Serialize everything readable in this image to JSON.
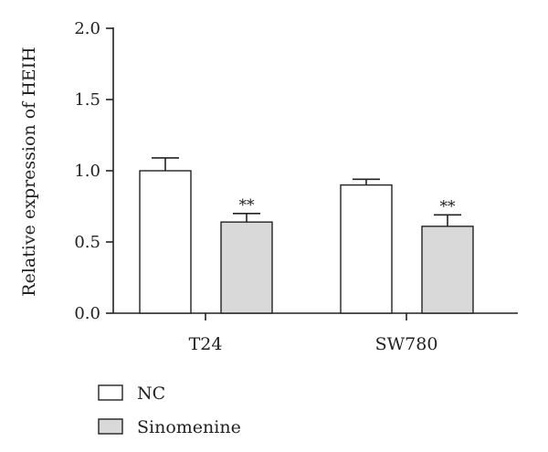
{
  "chart_data": {
    "type": "bar",
    "ylabel": "Relative expression of HEIH",
    "xlabel": "",
    "ylim": [
      0,
      2.0
    ],
    "yticks": [
      "0.0",
      "0.5",
      "1.0",
      "1.5",
      "2.0"
    ],
    "categories": [
      "T24",
      "SW780"
    ],
    "series": [
      {
        "name": "NC",
        "values": [
          1.0,
          0.9
        ],
        "errors": [
          0.09,
          0.04
        ],
        "fill": "#ffffff",
        "significance": [
          "",
          ""
        ]
      },
      {
        "name": "Sinomenine",
        "values": [
          0.64,
          0.61
        ],
        "errors": [
          0.06,
          0.08
        ],
        "fill": "#d9d9d9",
        "significance": [
          "**",
          "**"
        ]
      }
    ],
    "legend_position": "bottom-left",
    "grid": false
  }
}
